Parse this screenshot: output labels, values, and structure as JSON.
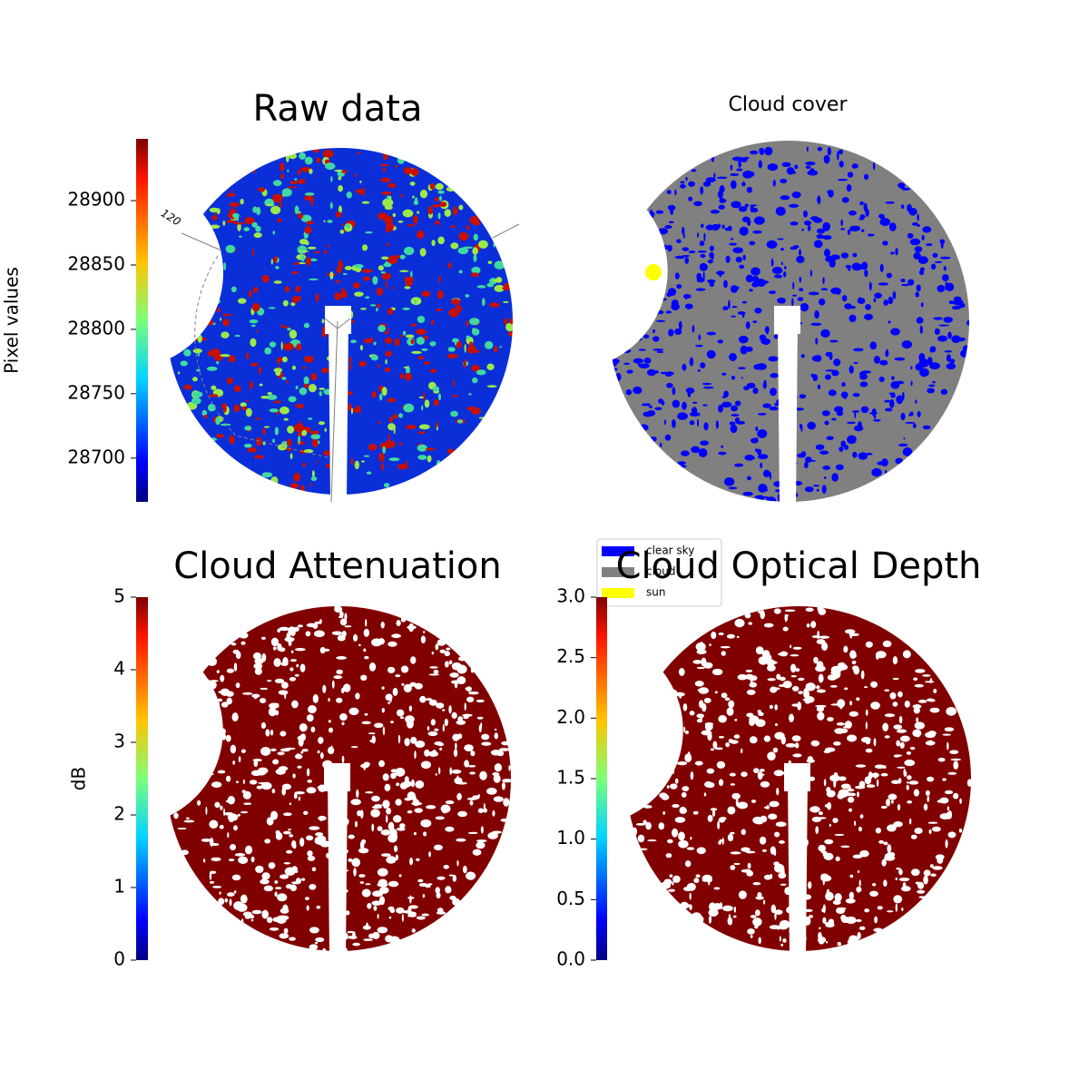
{
  "chart_data": [
    {
      "type": "image",
      "title": "Raw data",
      "ylabel": "Pixel values",
      "ylim": [
        28666,
        28948
      ],
      "yticks": [
        28700,
        28750,
        28800,
        28850,
        28900
      ],
      "cmap": "jet",
      "annotations": [
        "120"
      ]
    },
    {
      "type": "image",
      "title": "Cloud cover",
      "categories": [
        "clear sky",
        "cloud",
        "sun"
      ],
      "colors": [
        "#0000ff",
        "#808080",
        "#ffff00"
      ]
    },
    {
      "type": "image",
      "title": "Cloud Attenuation",
      "ylabel": "dB",
      "ylim": [
        0,
        5
      ],
      "yticks": [
        0,
        1,
        2,
        3,
        4,
        5
      ],
      "cmap": "jet",
      "color": "#800000"
    },
    {
      "type": "image",
      "title": "Cloud Optical Depth",
      "ylim": [
        0,
        3
      ],
      "yticks": [
        {
          "value": 0,
          "label": "0.0"
        },
        0.5,
        {
          "value": 1,
          "label": "1.0"
        },
        1.5,
        {
          "value": 2,
          "label": "2.0"
        },
        2.5,
        {
          "value": 3,
          "label": "3.0"
        }
      ],
      "cmap": "jet",
      "color": "#800000"
    }
  ]
}
